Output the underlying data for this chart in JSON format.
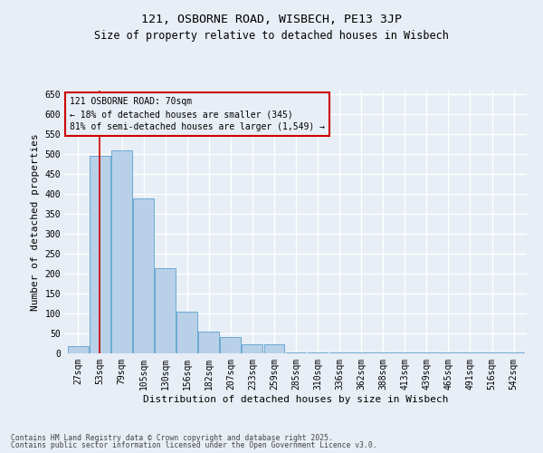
{
  "title1": "121, OSBORNE ROAD, WISBECH, PE13 3JP",
  "title2": "Size of property relative to detached houses in Wisbech",
  "xlabel": "Distribution of detached houses by size in Wisbech",
  "ylabel": "Number of detached properties",
  "categories": [
    "27sqm",
    "53sqm",
    "79sqm",
    "105sqm",
    "130sqm",
    "156sqm",
    "182sqm",
    "207sqm",
    "233sqm",
    "259sqm",
    "285sqm",
    "310sqm",
    "336sqm",
    "362sqm",
    "388sqm",
    "413sqm",
    "439sqm",
    "465sqm",
    "491sqm",
    "516sqm",
    "542sqm"
  ],
  "values": [
    18,
    497,
    510,
    390,
    215,
    105,
    55,
    40,
    22,
    22,
    3,
    3,
    3,
    3,
    3,
    3,
    2,
    3,
    2,
    3,
    2
  ],
  "bar_color": "#b8d0e8",
  "bar_edge_color": "#6aaad4",
  "bg_color": "#e8eef5",
  "grid_color": "#ffffff",
  "annotation_line1": "121 OSBORNE ROAD: 70sqm",
  "annotation_line2": "← 18% of detached houses are smaller (345)",
  "annotation_line3": "81% of semi-detached houses are larger (1,549) →",
  "red_line_color": "#cc0000",
  "ylim": [
    0,
    660
  ],
  "yticks": [
    0,
    50,
    100,
    150,
    200,
    250,
    300,
    350,
    400,
    450,
    500,
    550,
    600,
    650
  ],
  "footer1": "Contains HM Land Registry data © Crown copyright and database right 2025.",
  "footer2": "Contains public sector information licensed under the Open Government Licence v3.0.",
  "title_fontsize": 9.5,
  "subtitle_fontsize": 8.5,
  "annotation_fontsize": 7,
  "axis_label_fontsize": 8,
  "tick_fontsize": 7,
  "footer_fontsize": 5.8
}
